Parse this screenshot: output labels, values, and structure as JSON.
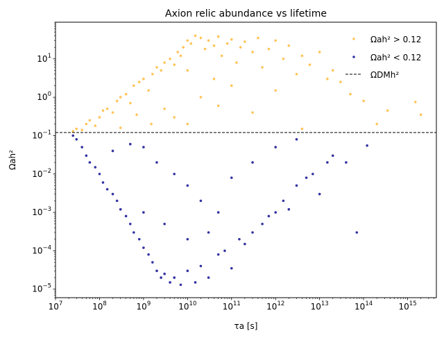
{
  "chart_data": {
    "type": "scatter",
    "title": "Axion relic abundance vs lifetime",
    "xlabel": "τa [s]",
    "ylabel": "Ωah²",
    "xscale": "log",
    "yscale": "log",
    "xlim": [
      10000000.0,
      4500000000000000.0
    ],
    "ylim": [
      6e-06,
      90
    ],
    "xtick_labels": [
      "10^7",
      "10^8",
      "10^9",
      "10^10",
      "10^11",
      "10^12",
      "10^13",
      "10^14",
      "10^15"
    ],
    "ytick_labels": [
      "10^-5",
      "10^-4",
      "10^-3",
      "10^-2",
      "10^-1",
      "10^0",
      "10^1"
    ],
    "grid": false,
    "legend_position": "top-right",
    "reference_line": {
      "label": "ΩDMh²",
      "y": 0.12,
      "style": "dashed",
      "color": "#000000"
    },
    "series": [
      {
        "name": "Ωah² > 0.12",
        "color": "#ffa500",
        "points": [
          [
            25000000.0,
            0.13
          ],
          [
            30000000.0,
            0.15
          ],
          [
            40000000.0,
            0.14
          ],
          [
            50000000.0,
            0.2
          ],
          [
            60000000.0,
            0.25
          ],
          [
            80000000.0,
            0.18
          ],
          [
            100000000.0,
            0.3
          ],
          [
            120000000.0,
            0.45
          ],
          [
            150000000.0,
            0.5
          ],
          [
            200000000.0,
            0.4
          ],
          [
            250000000.0,
            0.8
          ],
          [
            300000000.0,
            1.0
          ],
          [
            400000000.0,
            1.2
          ],
          [
            500000000.0,
            0.7
          ],
          [
            600000000.0,
            2.0
          ],
          [
            800000000.0,
            2.5
          ],
          [
            1000000000.0,
            3.0
          ],
          [
            1300000000.0,
            1.5
          ],
          [
            1600000000.0,
            4.0
          ],
          [
            2000000000.0,
            6.0
          ],
          [
            2500000000.0,
            5.0
          ],
          [
            3000000000.0,
            8.0
          ],
          [
            4000000000.0,
            10.0
          ],
          [
            5000000000.0,
            7.0
          ],
          [
            6000000000.0,
            15.0
          ],
          [
            7000000000.0,
            12.0
          ],
          [
            8000000000.0,
            20.0
          ],
          [
            10000000000.0,
            30.0
          ],
          [
            12000000000.0,
            25.0
          ],
          [
            15000000000.0,
            40.0
          ],
          [
            20000000000.0,
            35.0
          ],
          [
            25000000000.0,
            18.0
          ],
          [
            30000000000.0,
            30.0
          ],
          [
            40000000000.0,
            22.0
          ],
          [
            50000000000.0,
            38.0
          ],
          [
            60000000000.0,
            12.0
          ],
          [
            80000000000.0,
            25.0
          ],
          [
            100000000000.0,
            32.0
          ],
          [
            130000000000.0,
            8.0
          ],
          [
            160000000000.0,
            20.0
          ],
          [
            200000000000.0,
            28.0
          ],
          [
            300000000000.0,
            15.0
          ],
          [
            400000000000.0,
            35.0
          ],
          [
            500000000000.0,
            6.0
          ],
          [
            700000000000.0,
            18.0
          ],
          [
            1000000000000.0,
            30.0
          ],
          [
            1500000000000.0,
            10.0
          ],
          [
            2000000000000.0,
            22.0
          ],
          [
            3000000000000.0,
            4.0
          ],
          [
            4000000000000.0,
            12.0
          ],
          [
            6000000000000.0,
            7.0
          ],
          [
            10000000000000.0,
            15.0
          ],
          [
            15000000000000.0,
            3.0
          ],
          [
            20000000000000.0,
            5.0
          ],
          [
            30000000000000.0,
            2.5
          ],
          [
            50000000000000.0,
            1.2
          ],
          [
            100000000000000.0,
            0.8
          ],
          [
            200000000000000.0,
            0.2
          ],
          [
            350000000000000.0,
            0.45
          ],
          [
            1500000000000000.0,
            0.75
          ],
          [
            2000000000000000.0,
            0.35
          ],
          [
            3000000000.0,
            0.5
          ],
          [
            5000000000.0,
            0.3
          ],
          [
            10000000000.0,
            0.2
          ],
          [
            20000000000.0,
            1.0
          ],
          [
            50000000000.0,
            0.6
          ],
          [
            100000000000.0,
            2.0
          ],
          [
            300000000000.0,
            0.4
          ],
          [
            1000000000000.0,
            1.5
          ],
          [
            4000000000000.0,
            0.15
          ],
          [
            1500000000.0,
            0.2
          ],
          [
            700000000.0,
            0.35
          ],
          [
            300000000.0,
            0.16
          ],
          [
            10000000000.0,
            5.0
          ],
          [
            40000000000.0,
            3.0
          ]
        ]
      },
      {
        "name": "Ωah² < 0.12",
        "color": "#00008b",
        "points": [
          [
            25000000.0,
            0.1
          ],
          [
            30000000.0,
            0.08
          ],
          [
            40000000.0,
            0.05
          ],
          [
            50000000.0,
            0.03
          ],
          [
            60000000.0,
            0.02
          ],
          [
            80000000.0,
            0.015
          ],
          [
            100000000.0,
            0.01
          ],
          [
            120000000.0,
            0.006
          ],
          [
            150000000.0,
            0.004
          ],
          [
            200000000.0,
            0.003
          ],
          [
            250000000.0,
            0.002
          ],
          [
            300000000.0,
            0.0012
          ],
          [
            400000000.0,
            0.0008
          ],
          [
            500000000.0,
            0.0005
          ],
          [
            600000000.0,
            0.0003
          ],
          [
            800000000.0,
            0.0002
          ],
          [
            1000000000.0,
            0.00012
          ],
          [
            1300000000.0,
            8e-05
          ],
          [
            1600000000.0,
            5e-05
          ],
          [
            2000000000.0,
            3e-05
          ],
          [
            2500000000.0,
            2e-05
          ],
          [
            3000000000.0,
            2.5e-05
          ],
          [
            4000000000.0,
            1.5e-05
          ],
          [
            5000000000.0,
            2e-05
          ],
          [
            7000000000.0,
            1.3e-05
          ],
          [
            10000000000.0,
            3e-05
          ],
          [
            15000000000.0,
            1.5e-05
          ],
          [
            20000000000.0,
            4e-05
          ],
          [
            30000000000.0,
            2e-05
          ],
          [
            50000000000.0,
            8e-05
          ],
          [
            70000000000.0,
            0.0001
          ],
          [
            100000000000.0,
            3.5e-05
          ],
          [
            150000000000.0,
            0.0002
          ],
          [
            200000000000.0,
            0.00015
          ],
          [
            300000000000.0,
            0.0003
          ],
          [
            500000000000.0,
            0.0005
          ],
          [
            700000000000.0,
            0.0008
          ],
          [
            1000000000000.0,
            0.001
          ],
          [
            1500000000000.0,
            0.002
          ],
          [
            2000000000000.0,
            0.0012
          ],
          [
            3000000000000.0,
            0.005
          ],
          [
            5000000000000.0,
            0.008
          ],
          [
            7000000000000.0,
            0.01
          ],
          [
            10000000000000.0,
            0.003
          ],
          [
            15000000000000.0,
            0.02
          ],
          [
            20000000000000.0,
            0.03
          ],
          [
            40000000000000.0,
            0.02
          ],
          [
            70000000000000.0,
            0.0003
          ],
          [
            120000000000000.0,
            0.055
          ],
          [
            1000000000.0,
            0.05
          ],
          [
            2000000000.0,
            0.02
          ],
          [
            5000000000.0,
            0.01
          ],
          [
            10000000000.0,
            0.005
          ],
          [
            20000000000.0,
            0.002
          ],
          [
            50000000000.0,
            0.001
          ],
          [
            100000000000.0,
            0.008
          ],
          [
            300000000000.0,
            0.02
          ],
          [
            1000000000000.0,
            0.05
          ],
          [
            3000000000000.0,
            0.08
          ],
          [
            500000000.0,
            0.06
          ],
          [
            200000000.0,
            0.04
          ],
          [
            1000000000.0,
            0.001
          ],
          [
            3000000000.0,
            0.0005
          ],
          [
            10000000000.0,
            0.0002
          ],
          [
            30000000000.0,
            0.0003
          ]
        ]
      }
    ]
  }
}
